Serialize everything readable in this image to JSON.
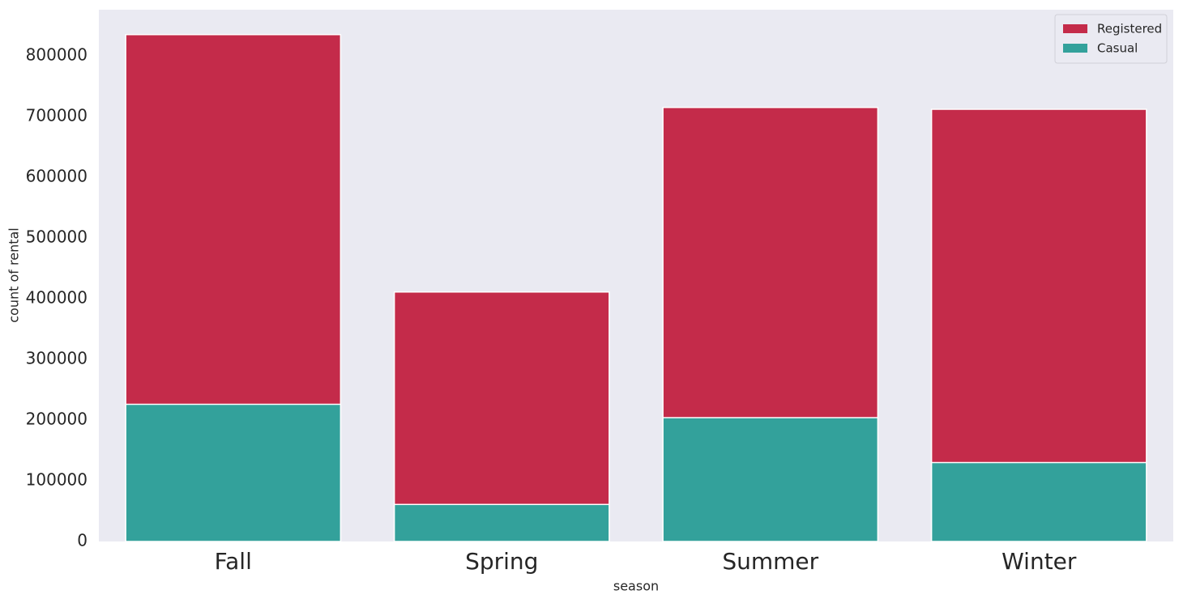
{
  "chart_data": {
    "type": "bar",
    "barmode": "overlay",
    "x_label": "season",
    "y_label": "count of rental",
    "categories": [
      "Fall",
      "Spring",
      "Summer",
      "Winter"
    ],
    "series": [
      {
        "name": "Registered",
        "color": "#c42b4a",
        "values": [
          835000,
          411000,
          715000,
          712000
        ]
      },
      {
        "name": "Casual",
        "color": "#33a19b",
        "values": [
          226000,
          61000,
          204000,
          130000
        ]
      }
    ],
    "ylim": [
      0,
      876000
    ],
    "yticks": [
      0,
      100000,
      200000,
      300000,
      400000,
      500000,
      600000,
      700000,
      800000
    ],
    "grid": false,
    "legend": "upper right"
  }
}
